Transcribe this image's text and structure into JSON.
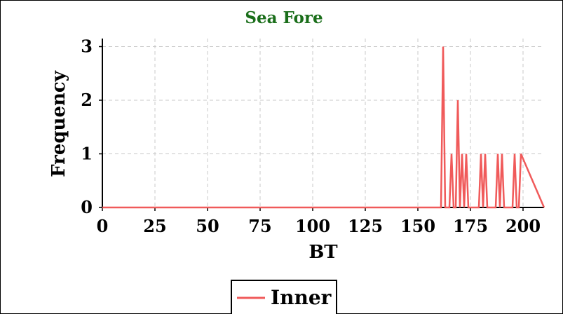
{
  "chart_data": {
    "type": "line",
    "title": "Sea Fore",
    "xlabel": "BT",
    "ylabel": "Frequency",
    "xlim": [
      0,
      210
    ],
    "ylim": [
      0,
      3.15
    ],
    "xticks": [
      0,
      25,
      50,
      75,
      100,
      125,
      150,
      175,
      200
    ],
    "yticks": [
      0,
      1,
      2,
      3
    ],
    "grid": true,
    "legend_position": "bottom-center",
    "series": [
      {
        "name": "Inner",
        "color": "#f05a5a",
        "x": [
          0,
          161,
          162,
          163,
          165,
          166,
          167,
          168,
          169,
          170,
          171,
          172,
          173,
          174,
          175,
          179,
          180,
          181,
          182,
          183,
          187,
          188,
          189,
          190,
          191,
          195,
          196,
          197,
          198,
          199,
          210
        ],
        "y": [
          0,
          0,
          3,
          0,
          0,
          1,
          0,
          0,
          2,
          0,
          1,
          0,
          1,
          0,
          0,
          0,
          1,
          0,
          1,
          0,
          0,
          1,
          0,
          1,
          0,
          0,
          1,
          0,
          0,
          1,
          0
        ]
      }
    ]
  }
}
